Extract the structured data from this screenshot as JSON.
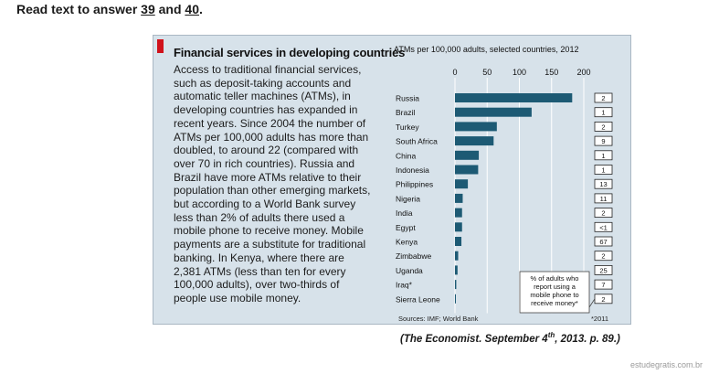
{
  "header": {
    "prefix": "Read text to answer ",
    "q1": "39",
    "mid": " and ",
    "q2": "40",
    "suffix": "."
  },
  "article": {
    "headline": "Financial services in developing countries",
    "body": "Access to traditional financial services, such as deposit-taking accounts and automatic teller machines (ATMs), in developing countries has expanded in recent years. Since 2004 the number of ATMs per 100,000 adults has more than doubled, to around 22 (compared with over 70 in rich countries). Russia and Brazil have more ATMs relative to their population than other emerging markets, but according to a World Bank survey less than 2% of adults there used a mobile phone to receive money. Mobile payments are a substitute for traditional banking. In Kenya, where there are 2,381 ATMs (less than ten for every 100,000 adults), over two-thirds of people use mobile money.",
    "source": "Sources: IMF; World Bank",
    "footnote": "*2011"
  },
  "citation": {
    "text": "(The Economist. September 4",
    "sup": "th",
    "rest": ", 2013. p. 89.)"
  },
  "watermark": "estudegratis.com.br",
  "chart_data": {
    "type": "bar",
    "orientation": "horizontal",
    "title": "ATMs per 100,000 adults, selected countries, 2012",
    "categories": [
      "Russia",
      "Brazil",
      "Turkey",
      "South Africa",
      "China",
      "Indonesia",
      "Philippines",
      "Nigeria",
      "India",
      "Egypt",
      "Kenya",
      "Zimbabwe",
      "Uganda",
      "Iraq*",
      "Sierra Leone"
    ],
    "values": [
      182,
      119,
      65,
      60,
      37,
      36,
      20,
      12,
      11,
      11,
      10,
      5,
      4,
      2,
      1
    ],
    "xlim": [
      0,
      200
    ],
    "xticks": [
      0,
      50,
      100,
      150,
      200
    ],
    "bar_color": "#1d5a74",
    "box_values": [
      "2",
      "1",
      "2",
      "9",
      "1",
      "1",
      "13",
      "11",
      "2",
      "<1",
      "67",
      "2",
      "25",
      "7",
      "2"
    ],
    "box_label": "% of adults who report using a mobile phone to receive money*",
    "box_label_lines": [
      "% of adults who",
      "report using a",
      "mobile phone to",
      "receive money*"
    ]
  }
}
